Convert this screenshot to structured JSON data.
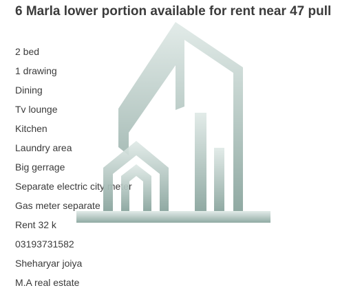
{
  "post": {
    "title": "6 Marla lower portion available for rent near 47 pull",
    "lines": [
      "2 bed",
      "1 drawing",
      "Dining",
      "Tv lounge",
      "Kitchen",
      "Laundry area",
      "Big gerrage",
      "Separate electric city meter",
      "Gas meter separate",
      "Rent 32 k",
      "03193731582",
      "Sheharyar joiya",
      "M.A real estate"
    ]
  },
  "watermark": {
    "icon": "building-logo-icon",
    "colors": {
      "top": "#dfe9e6",
      "bottom": "#8aa59e"
    }
  }
}
